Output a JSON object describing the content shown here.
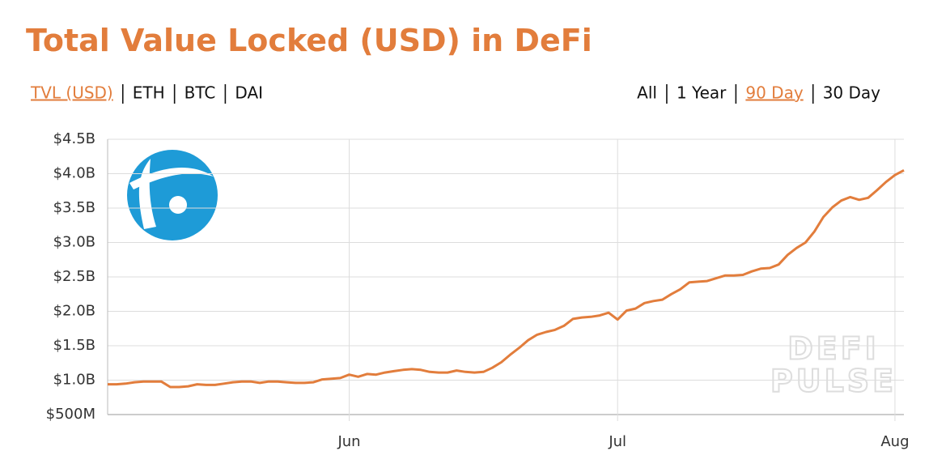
{
  "header": {
    "title": "Total Value Locked (USD) in DeFi",
    "tabs": [
      "TVL (USD)",
      "ETH",
      "BTC",
      "DAI"
    ],
    "active_tab_index": 0,
    "ranges": [
      "All",
      "1 Year",
      "90 Day",
      "30 Day"
    ],
    "active_range_index": 2
  },
  "watermark": [
    "DEFI",
    "PULSE"
  ],
  "chart_data": {
    "type": "line",
    "color": "#e27d3c",
    "grid": true,
    "categories": [
      null,
      null,
      null,
      null,
      null,
      null,
      null,
      null,
      null,
      null,
      null,
      null,
      null,
      null,
      null,
      null,
      null,
      null,
      null,
      null,
      null,
      null,
      null,
      null,
      null,
      null,
      null,
      "Jun",
      null,
      null,
      null,
      null,
      null,
      null,
      null,
      null,
      null,
      null,
      null,
      null,
      null,
      null,
      null,
      null,
      null,
      null,
      null,
      null,
      null,
      null,
      null,
      null,
      null,
      null,
      null,
      null,
      null,
      "Jul",
      null,
      null,
      null,
      null,
      null,
      null,
      null,
      null,
      null,
      null,
      null,
      null,
      null,
      null,
      null,
      null,
      null,
      null,
      null,
      null,
      null,
      null,
      null,
      null,
      null,
      null,
      null,
      null,
      null,
      null,
      "Aug",
      null
    ],
    "values": [
      0.94,
      0.94,
      0.95,
      0.97,
      0.98,
      0.98,
      0.98,
      0.9,
      0.9,
      0.91,
      0.94,
      0.93,
      0.93,
      0.95,
      0.97,
      0.98,
      0.98,
      0.96,
      0.98,
      0.98,
      0.97,
      0.96,
      0.96,
      0.97,
      1.01,
      1.02,
      1.03,
      1.08,
      1.05,
      1.09,
      1.08,
      1.11,
      1.13,
      1.15,
      1.16,
      1.15,
      1.12,
      1.11,
      1.11,
      1.14,
      1.12,
      1.11,
      1.12,
      1.18,
      1.26,
      1.37,
      1.47,
      1.58,
      1.66,
      1.7,
      1.73,
      1.79,
      1.89,
      1.91,
      1.92,
      1.94,
      1.98,
      1.88,
      2.01,
      2.04,
      2.12,
      2.15,
      2.17,
      2.25,
      2.32,
      2.42,
      2.43,
      2.44,
      2.48,
      2.52,
      2.52,
      2.53,
      2.58,
      2.62,
      2.63,
      2.68,
      2.82,
      2.92,
      3.0,
      3.16,
      3.37,
      3.51,
      3.61,
      3.66,
      3.62,
      3.65,
      3.76,
      3.88,
      3.98,
      4.05
    ],
    "ylim": [
      0.5,
      4.5
    ],
    "yticks": [
      {
        "value": 0.5,
        "label": "$500M"
      },
      {
        "value": 1.0,
        "label": "$1.0B"
      },
      {
        "value": 1.5,
        "label": "$1.5B"
      },
      {
        "value": 2.0,
        "label": "$2.0B"
      },
      {
        "value": 2.5,
        "label": "$2.5B"
      },
      {
        "value": 3.0,
        "label": "$3.0B"
      },
      {
        "value": 3.5,
        "label": "$3.5B"
      },
      {
        "value": 4.0,
        "label": "$4.0B"
      },
      {
        "value": 4.5,
        "label": "$4.5B"
      }
    ]
  }
}
